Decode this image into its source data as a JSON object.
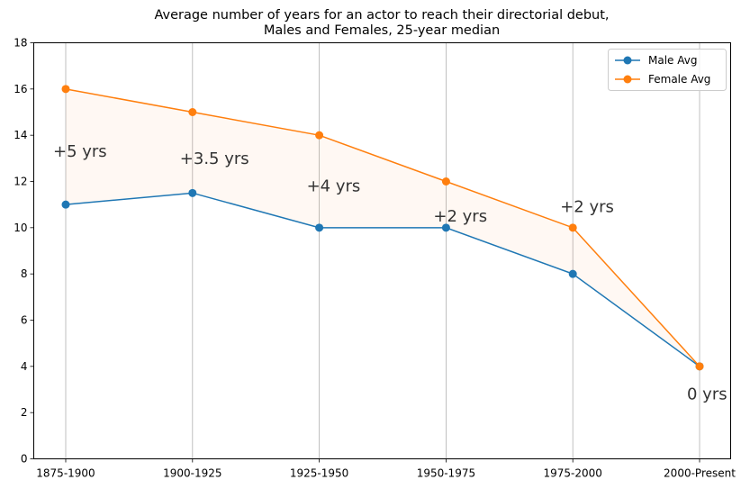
{
  "chart_data": {
    "type": "line",
    "title_line1": "Average number of years for an actor to reach their directorial debut,",
    "title_line2": "Males and Females, 25-year median",
    "categories": [
      "1875-1900",
      "1900-1925",
      "1925-1950",
      "1950-1975",
      "1975-2000",
      "2000-Present"
    ],
    "series": [
      {
        "name": "Male Avg",
        "color": "#1f77b4",
        "values": [
          11,
          11.5,
          10,
          10,
          8,
          4
        ]
      },
      {
        "name": "Female Avg",
        "color": "#ff7f0e",
        "values": [
          16,
          15,
          14,
          12,
          10,
          4
        ]
      }
    ],
    "ylim": [
      0,
      18
    ],
    "yticks": [
      0,
      2,
      4,
      6,
      8,
      10,
      12,
      14,
      16,
      18
    ],
    "grid": "vertical",
    "fill_between": {
      "color": "#ff7f0e",
      "opacity": 0.05
    },
    "annotations": [
      {
        "category": "1875-1900",
        "y": 13.3,
        "text": "+5 yrs"
      },
      {
        "category": "1900-1925",
        "y": 13.0,
        "text": "+3.5 yrs"
      },
      {
        "category": "1925-1950",
        "y": 11.8,
        "text": "+4 yrs"
      },
      {
        "category": "1950-1975",
        "y": 10.5,
        "text": "+2 yrs"
      },
      {
        "category": "1975-2000",
        "y": 10.9,
        "text": "+2 yrs"
      },
      {
        "category": "2000-Present",
        "y": 2.8,
        "text": "0 yrs"
      }
    ],
    "legend": {
      "placement": "upper-right"
    }
  }
}
